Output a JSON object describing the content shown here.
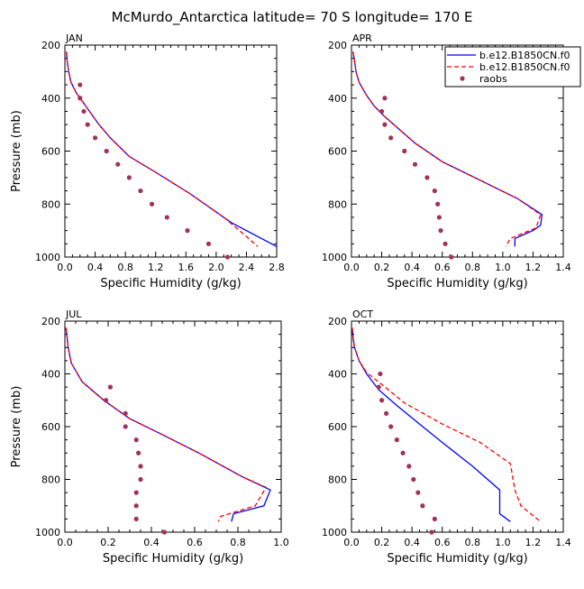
{
  "figure": {
    "title": "McMurdo_Antarctica  latitude= 70 S longitude= 170 E"
  },
  "legend": {
    "placement": "top-right of APR panel",
    "entries": [
      {
        "label": "b.e12.B1850CN.f0",
        "color": "#0000ff",
        "style": "solid"
      },
      {
        "label": "b.e12.B1850CN.f0",
        "color": "#ff0000",
        "style": "dashed"
      },
      {
        "label": "raobs",
        "color": "#a0325a",
        "style": "dots"
      }
    ]
  },
  "colors": {
    "series1": "#0000ff",
    "series2": "#ff0000",
    "raobs": "#a0325a"
  },
  "chart_data": [
    {
      "type": "line",
      "title": "JAN",
      "xlabel": "Specific Humidity (g/kg)",
      "ylabel": "Pressure (mb)",
      "xlim": [
        0,
        2.8
      ],
      "ylim": [
        1000,
        200
      ],
      "y_inverted": true,
      "xticks": [
        "0.0",
        "0.4",
        "0.8",
        "1.2",
        "1.6",
        "2.0",
        "2.4",
        "2.8"
      ],
      "xtick_values": [
        0,
        0.4,
        0.8,
        1.2,
        1.6,
        2.0,
        2.4,
        2.8
      ],
      "yticks": [
        "200",
        "400",
        "600",
        "800",
        "1000"
      ],
      "ytick_values": [
        200,
        400,
        600,
        800,
        1000
      ],
      "series": [
        {
          "name": "b.e12.B1850CN.f0",
          "kind": "line",
          "style": "solid",
          "points": [
            [
              0.02,
              225
            ],
            [
              0.03,
              260
            ],
            [
              0.05,
              300
            ],
            [
              0.08,
              340
            ],
            [
              0.15,
              380
            ],
            [
              0.25,
              420
            ],
            [
              0.35,
              460
            ],
            [
              0.45,
              500
            ],
            [
              0.6,
              550
            ],
            [
              0.85,
              620
            ],
            [
              1.2,
              680
            ],
            [
              1.65,
              760
            ],
            [
              2.2,
              870
            ],
            [
              2.8,
              960
            ]
          ]
        },
        {
          "name": "b.e12.B1850CN.f0",
          "kind": "line",
          "style": "dashed",
          "points": [
            [
              0.02,
              225
            ],
            [
              0.03,
              260
            ],
            [
              0.05,
              300
            ],
            [
              0.08,
              340
            ],
            [
              0.15,
              380
            ],
            [
              0.25,
              420
            ],
            [
              0.35,
              460
            ],
            [
              0.45,
              500
            ],
            [
              0.6,
              550
            ],
            [
              0.85,
              620
            ],
            [
              1.2,
              680
            ],
            [
              1.65,
              760
            ],
            [
              2.1,
              850
            ],
            [
              2.35,
              910
            ],
            [
              2.55,
              960
            ]
          ]
        },
        {
          "name": "raobs",
          "kind": "dots",
          "points": [
            [
              0.2,
              350
            ],
            [
              0.2,
              400
            ],
            [
              0.25,
              450
            ],
            [
              0.3,
              500
            ],
            [
              0.4,
              550
            ],
            [
              0.55,
              600
            ],
            [
              0.7,
              650
            ],
            [
              0.85,
              700
            ],
            [
              1.0,
              750
            ],
            [
              1.15,
              800
            ],
            [
              1.35,
              850
            ],
            [
              1.62,
              900
            ],
            [
              1.9,
              950
            ],
            [
              2.15,
              1000
            ]
          ]
        }
      ]
    },
    {
      "type": "line",
      "title": "APR",
      "xlabel": "Specific Humidity (g/kg)",
      "ylabel": "",
      "xlim": [
        0,
        1.4
      ],
      "ylim": [
        1000,
        200
      ],
      "y_inverted": true,
      "xticks": [
        "0.0",
        "0.2",
        "0.4",
        "0.6",
        "0.8",
        "1.0",
        "1.2",
        "1.4"
      ],
      "xtick_values": [
        0,
        0.2,
        0.4,
        0.6,
        0.8,
        1.0,
        1.2,
        1.4
      ],
      "yticks": [
        "200",
        "400",
        "600",
        "800",
        "1000"
      ],
      "ytick_values": [
        200,
        400,
        600,
        800,
        1000
      ],
      "series": [
        {
          "name": "b.e12.B1850CN.f0",
          "kind": "line",
          "style": "solid",
          "points": [
            [
              0.01,
              225
            ],
            [
              0.02,
              260
            ],
            [
              0.03,
              300
            ],
            [
              0.05,
              340
            ],
            [
              0.1,
              390
            ],
            [
              0.15,
              430
            ],
            [
              0.22,
              470
            ],
            [
              0.3,
              510
            ],
            [
              0.42,
              570
            ],
            [
              0.6,
              640
            ],
            [
              0.85,
              710
            ],
            [
              1.1,
              780
            ],
            [
              1.26,
              840
            ],
            [
              1.25,
              880
            ],
            [
              1.2,
              900
            ],
            [
              1.08,
              930
            ],
            [
              1.08,
              960
            ]
          ]
        },
        {
          "name": "b.e12.B1850CN.f0",
          "kind": "line",
          "style": "dashed",
          "points": [
            [
              0.01,
              225
            ],
            [
              0.02,
              260
            ],
            [
              0.03,
              300
            ],
            [
              0.05,
              340
            ],
            [
              0.1,
              390
            ],
            [
              0.15,
              430
            ],
            [
              0.22,
              470
            ],
            [
              0.3,
              510
            ],
            [
              0.42,
              570
            ],
            [
              0.6,
              640
            ],
            [
              0.85,
              710
            ],
            [
              1.1,
              780
            ],
            [
              1.25,
              840
            ],
            [
              1.22,
              890
            ],
            [
              1.05,
              930
            ],
            [
              1.02,
              960
            ]
          ]
        },
        {
          "name": "raobs",
          "kind": "dots",
          "points": [
            [
              0.22,
              400
            ],
            [
              0.2,
              450
            ],
            [
              0.22,
              500
            ],
            [
              0.26,
              550
            ],
            [
              0.35,
              600
            ],
            [
              0.42,
              650
            ],
            [
              0.5,
              700
            ],
            [
              0.55,
              750
            ],
            [
              0.57,
              800
            ],
            [
              0.58,
              850
            ],
            [
              0.59,
              900
            ],
            [
              0.62,
              950
            ],
            [
              0.66,
              1000
            ]
          ]
        }
      ]
    },
    {
      "type": "line",
      "title": "JUL",
      "xlabel": "Specific Humidity (g/kg)",
      "ylabel": "Pressure (mb)",
      "xlim": [
        0,
        1.0
      ],
      "ylim": [
        1000,
        200
      ],
      "y_inverted": true,
      "xticks": [
        "0.0",
        "0.2",
        "0.4",
        "0.6",
        "0.8",
        "1.0"
      ],
      "xtick_values": [
        0,
        0.2,
        0.4,
        0.6,
        0.8,
        1.0
      ],
      "yticks": [
        "200",
        "400",
        "600",
        "800",
        "1000"
      ],
      "ytick_values": [
        200,
        400,
        600,
        800,
        1000
      ],
      "series": [
        {
          "name": "b.e12.B1850CN.f0",
          "kind": "line",
          "style": "solid",
          "points": [
            [
              0.005,
              225
            ],
            [
              0.01,
              260
            ],
            [
              0.015,
              300
            ],
            [
              0.03,
              360
            ],
            [
              0.08,
              430
            ],
            [
              0.18,
              500
            ],
            [
              0.3,
              570
            ],
            [
              0.45,
              630
            ],
            [
              0.62,
              700
            ],
            [
              0.82,
              790
            ],
            [
              0.95,
              840
            ],
            [
              0.92,
              900
            ],
            [
              0.78,
              930
            ],
            [
              0.77,
              960
            ]
          ]
        },
        {
          "name": "b.e12.B1850CN.f0",
          "kind": "line",
          "style": "dashed",
          "points": [
            [
              0.005,
              225
            ],
            [
              0.01,
              260
            ],
            [
              0.015,
              300
            ],
            [
              0.03,
              360
            ],
            [
              0.08,
              430
            ],
            [
              0.18,
              500
            ],
            [
              0.3,
              570
            ],
            [
              0.45,
              630
            ],
            [
              0.62,
              700
            ],
            [
              0.82,
              790
            ],
            [
              0.93,
              830
            ],
            [
              0.88,
              900
            ],
            [
              0.72,
              940
            ],
            [
              0.71,
              960
            ]
          ]
        },
        {
          "name": "raobs",
          "kind": "dots",
          "points": [
            [
              0.21,
              450
            ],
            [
              0.19,
              500
            ],
            [
              0.28,
              550
            ],
            [
              0.28,
              600
            ],
            [
              0.33,
              650
            ],
            [
              0.34,
              700
            ],
            [
              0.35,
              750
            ],
            [
              0.35,
              800
            ],
            [
              0.33,
              850
            ],
            [
              0.33,
              900
            ],
            [
              0.33,
              950
            ],
            [
              0.46,
              1000
            ]
          ]
        }
      ]
    },
    {
      "type": "line",
      "title": "OCT",
      "xlabel": "Specific Humidity (g/kg)",
      "ylabel": "",
      "xlim": [
        0,
        1.4
      ],
      "ylim": [
        1000,
        200
      ],
      "y_inverted": true,
      "xticks": [
        "0.0",
        "0.2",
        "0.4",
        "0.6",
        "0.8",
        "1.0",
        "1.2",
        "1.4"
      ],
      "xtick_values": [
        0,
        0.2,
        0.4,
        0.6,
        0.8,
        1.0,
        1.2,
        1.4
      ],
      "yticks": [
        "200",
        "400",
        "600",
        "800",
        "1000"
      ],
      "ytick_values": [
        200,
        400,
        600,
        800,
        1000
      ],
      "series": [
        {
          "name": "b.e12.B1850CN.f0",
          "kind": "line",
          "style": "solid",
          "points": [
            [
              0.005,
              225
            ],
            [
              0.01,
              260
            ],
            [
              0.02,
              300
            ],
            [
              0.05,
              350
            ],
            [
              0.1,
              400
            ],
            [
              0.18,
              460
            ],
            [
              0.3,
              520
            ],
            [
              0.45,
              590
            ],
            [
              0.6,
              660
            ],
            [
              0.8,
              750
            ],
            [
              0.98,
              840
            ],
            [
              0.98,
              930
            ],
            [
              1.05,
              960
            ]
          ]
        },
        {
          "name": "b.e12.B1850CN.f0",
          "kind": "line",
          "style": "dashed",
          "points": [
            [
              0.005,
              225
            ],
            [
              0.01,
              260
            ],
            [
              0.02,
              300
            ],
            [
              0.05,
              350
            ],
            [
              0.1,
              395
            ],
            [
              0.2,
              440
            ],
            [
              0.35,
              510
            ],
            [
              0.6,
              590
            ],
            [
              0.85,
              660
            ],
            [
              1.05,
              740
            ],
            [
              1.08,
              840
            ],
            [
              1.12,
              900
            ],
            [
              1.25,
              960
            ]
          ]
        },
        {
          "name": "raobs",
          "kind": "dots",
          "points": [
            [
              0.19,
              400
            ],
            [
              0.18,
              450
            ],
            [
              0.2,
              500
            ],
            [
              0.23,
              550
            ],
            [
              0.26,
              600
            ],
            [
              0.3,
              650
            ],
            [
              0.34,
              700
            ],
            [
              0.38,
              750
            ],
            [
              0.41,
              800
            ],
            [
              0.44,
              850
            ],
            [
              0.47,
              900
            ],
            [
              0.55,
              950
            ],
            [
              0.53,
              1000
            ]
          ]
        }
      ]
    }
  ]
}
